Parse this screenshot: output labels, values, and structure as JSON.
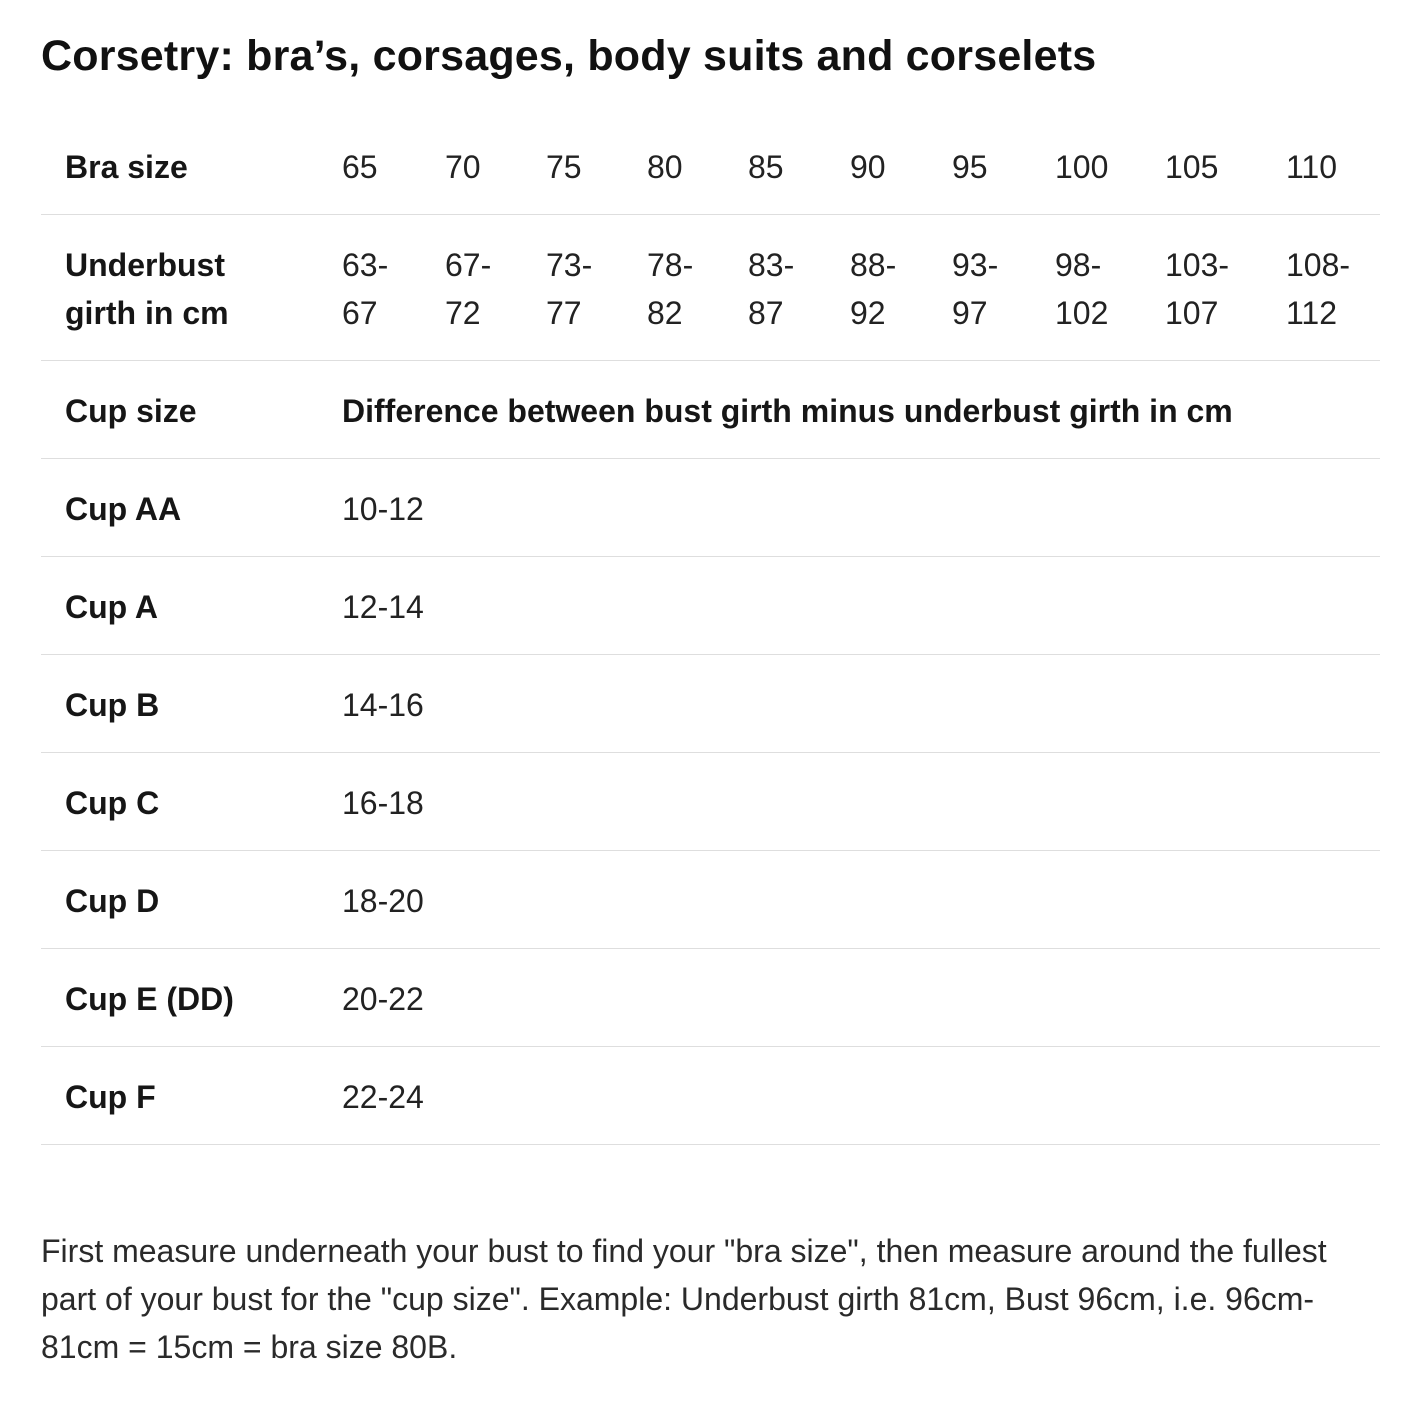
{
  "title": "Corsetry: bra’s, corsages, body suits and corselets",
  "table": {
    "bra_size_label": "Bra size",
    "bra_sizes": [
      "65",
      "70",
      "75",
      "80",
      "85",
      "90",
      "95",
      "100",
      "105",
      "110"
    ],
    "underbust_label": "Underbust\ngirth in cm",
    "underbust_ranges": [
      "63-\n67",
      "67-\n72",
      "73-\n77",
      "78-\n82",
      "83-\n87",
      "88-\n92",
      "93-\n97",
      "98-\n102",
      "103-\n107",
      "108-\n112"
    ],
    "cup_size_label": "Cup size",
    "difference_label": "Difference between bust girth minus underbust girth in cm",
    "cups": [
      {
        "label": "Cup AA",
        "range": "10-12"
      },
      {
        "label": "Cup A",
        "range": "12-14"
      },
      {
        "label": "Cup B",
        "range": "14-16"
      },
      {
        "label": "Cup C",
        "range": "16-18"
      },
      {
        "label": "Cup D",
        "range": "18-20"
      },
      {
        "label": "Cup E (DD)",
        "range": "20-22"
      },
      {
        "label": "Cup F",
        "range": "22-24"
      }
    ]
  },
  "note": "First measure underneath your bust to find your \"bra size\", then measure around the fullest part of your bust for the \"cup size\". Example: Underbust girth 81cm, Bust 96cm, i.e. 96cm-81cm = 15cm = bra size 80B."
}
